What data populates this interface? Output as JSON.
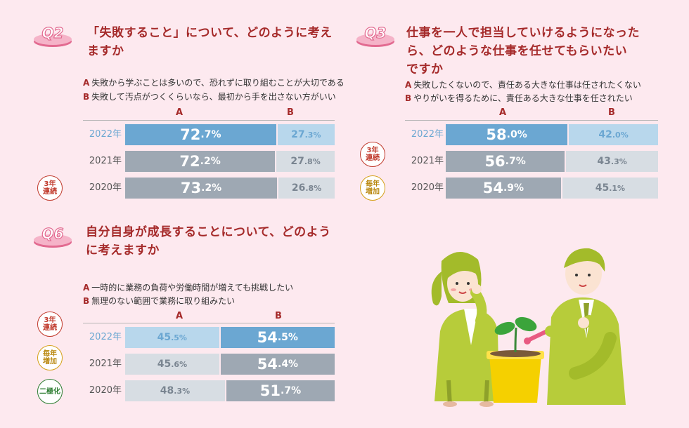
{
  "q2": {
    "badge": "Q2",
    "title_line1": "「失敗すること」について、どのように考え",
    "title_line2": "ますか",
    "optA_letter": "A",
    "optA_text": "失敗から学ぶことは多いので、恐れずに取り組むことが大切である",
    "optB_letter": "B",
    "optB_text": "失敗して汚点がつくくらいなら、最初から手を出さない方がいい",
    "colA": "A",
    "colB": "B",
    "stamp": "3年連続"
  },
  "q3": {
    "badge": "Q3",
    "title_line1": "仕事を一人で担当していけるようになった",
    "title_line2": "ら、どのような仕事を任せてもらいたい",
    "title_line3": "ですか",
    "optA_letter": "A",
    "optA_text": "失敗したくないので、責任ある大きな仕事は任されたくない",
    "optB_letter": "B",
    "optB_text": "やりがいを得るために、責任ある大きな仕事を任されたい",
    "colA": "A",
    "colB": "B",
    "stamp1": "3年連続",
    "stamp2": "毎年増加"
  },
  "q6": {
    "badge": "Q6",
    "title_line1": "自分自身が成長することについて、どのよう",
    "title_line2": "に考えますか",
    "optA_letter": "A",
    "optA_text": "一時的に業務の負荷や労働時間が増えても挑戦したい",
    "optB_letter": "B",
    "optB_text": "無理のない範囲で業務に取り組みたい",
    "colA": "A",
    "colB": "B",
    "stamp1": "3年連続",
    "stamp2": "毎年増加",
    "stamp3": "二極化"
  },
  "colors": {
    "accent": "#a52a2a",
    "highlight_dark": "#6ba7d2",
    "highlight_light": "#b8d7ec",
    "gray_dark": "#9ea8b3",
    "gray_light": "#d7dde3",
    "background": "#fde9ef",
    "badge_pink": "#e26a90"
  },
  "chart_data": [
    {
      "type": "bar",
      "id": "q2",
      "categories": [
        "2022年",
        "2021年",
        "2020年"
      ],
      "series": [
        {
          "name": "A",
          "values": [
            72.7,
            72.2,
            73.2
          ]
        },
        {
          "name": "B",
          "values": [
            27.3,
            27.8,
            26.8
          ]
        }
      ],
      "unit": "%"
    },
    {
      "type": "bar",
      "id": "q3",
      "categories": [
        "2022年",
        "2021年",
        "2020年"
      ],
      "series": [
        {
          "name": "A",
          "values": [
            58.0,
            56.7,
            54.9
          ]
        },
        {
          "name": "B",
          "values": [
            42.0,
            43.3,
            45.1
          ]
        }
      ],
      "unit": "%"
    },
    {
      "type": "bar",
      "id": "q6",
      "categories": [
        "2022年",
        "2021年",
        "2020年"
      ],
      "series": [
        {
          "name": "A",
          "values": [
            45.5,
            45.6,
            48.3
          ]
        },
        {
          "name": "B",
          "values": [
            54.5,
            54.4,
            51.7
          ]
        }
      ],
      "unit": "%"
    }
  ]
}
